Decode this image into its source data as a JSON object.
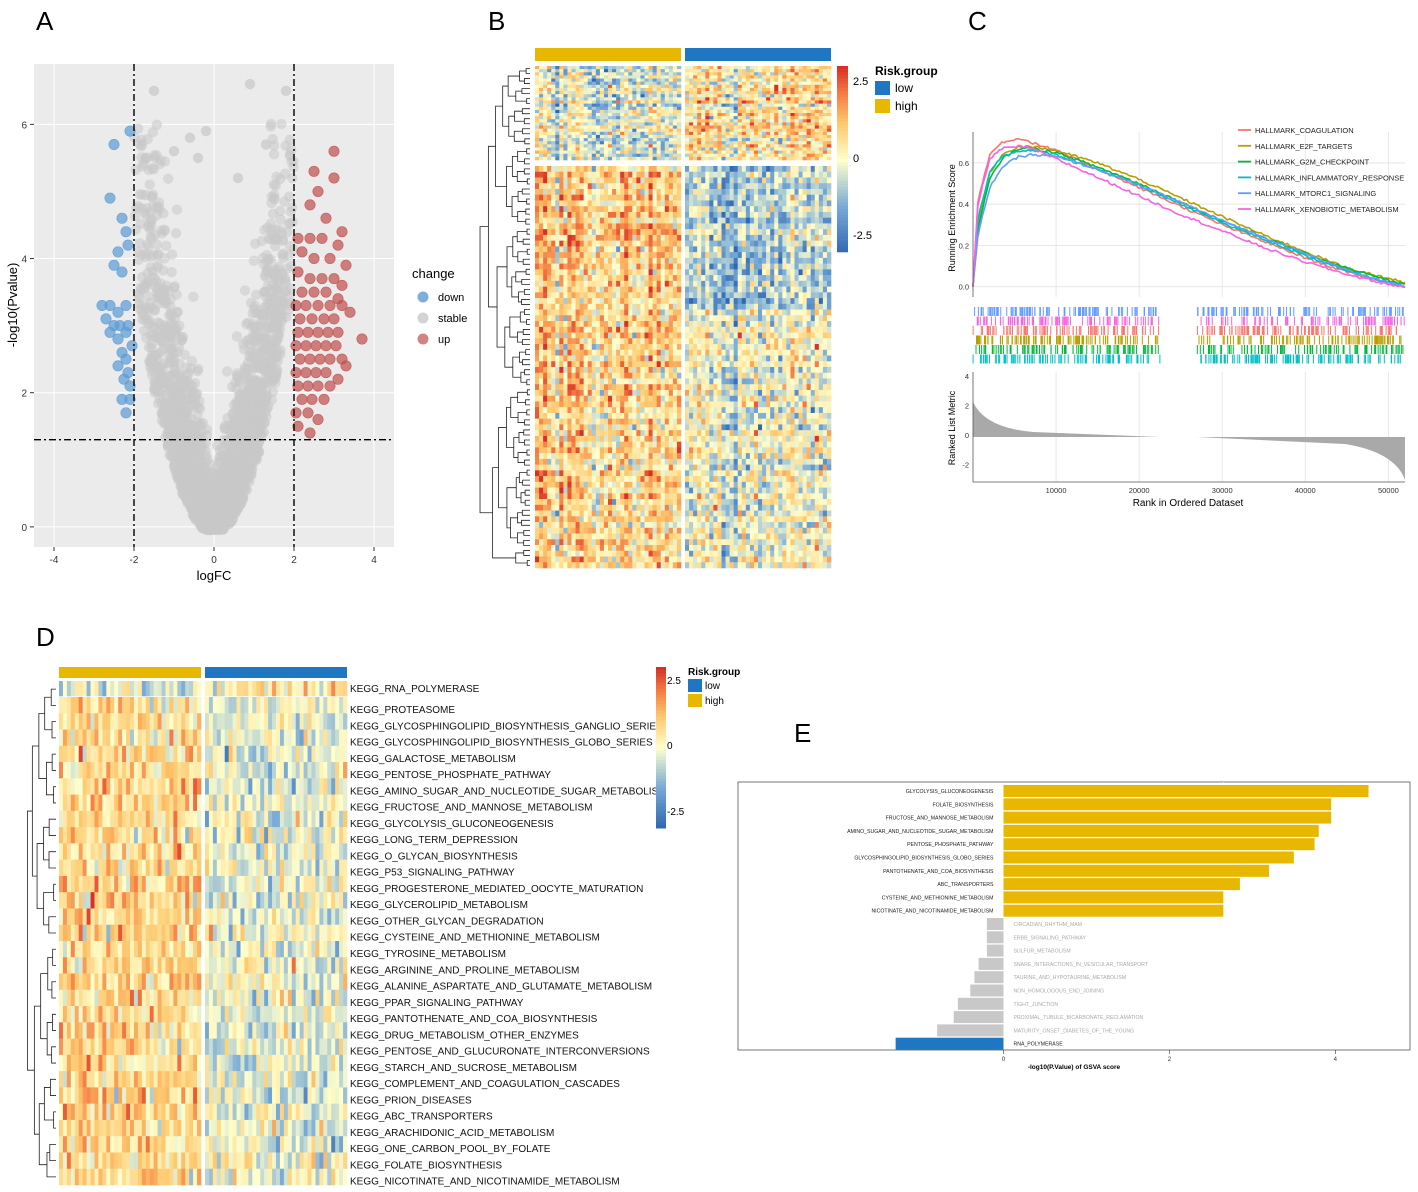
{
  "panel_labels": {
    "A": "A",
    "B": "B",
    "C": "C",
    "D": "D",
    "E": "E"
  },
  "colors": {
    "down": "#5B9BD5",
    "stable": "#C8C8C8",
    "up": "#C0504D",
    "risk_low": "#1F77C4",
    "risk_high": "#E8B800",
    "gsva_pos": "#E8B800",
    "gsva_neg": "#1F77C4",
    "gsva_ns": "#C8C8C8",
    "gsea": [
      "#F8766D",
      "#B79F00",
      "#00BA38",
      "#00BFC4",
      "#619CFF",
      "#F564E3"
    ]
  },
  "chart_data": [
    {
      "panel": "A",
      "type": "scatter",
      "xlabel": "logFC",
      "ylabel": "-log10(Pvalue)",
      "xlim": [
        -4.5,
        4.5
      ],
      "ylim": [
        -0.3,
        6.9
      ],
      "xticks": [
        -4,
        -2,
        0,
        2,
        4
      ],
      "yticks": [
        0,
        2,
        4,
        6
      ],
      "grid": true,
      "thresholds": {
        "logFC": [
          -2,
          2
        ],
        "neglog10p": 1.3
      },
      "legend": {
        "title": "change",
        "entries": [
          "down",
          "stable",
          "up"
        ],
        "placement": "right"
      },
      "series": [
        {
          "name": "down",
          "points": [
            [
              -2.5,
              5.7
            ],
            [
              -2.1,
              5.9
            ],
            [
              -2.6,
              4.9
            ],
            [
              -2.3,
              4.6
            ],
            [
              -2.2,
              4.4
            ],
            [
              -2.15,
              4.2
            ],
            [
              -2.4,
              4.1
            ],
            [
              -2.5,
              3.9
            ],
            [
              -2.3,
              3.8
            ],
            [
              -2.8,
              3.3
            ],
            [
              -2.6,
              3.3
            ],
            [
              -2.4,
              3.2
            ],
            [
              -2.2,
              3.3
            ],
            [
              -2.7,
              3.1
            ],
            [
              -2.5,
              3.0
            ],
            [
              -2.35,
              3.0
            ],
            [
              -2.15,
              3.0
            ],
            [
              -2.6,
              2.9
            ],
            [
              -2.4,
              2.8
            ],
            [
              -2.2,
              2.9
            ],
            [
              -2.3,
              2.6
            ],
            [
              -2.2,
              2.5
            ],
            [
              -2.4,
              2.4
            ],
            [
              -2.15,
              2.3
            ],
            [
              -2.25,
              2.2
            ],
            [
              -2.1,
              2.1
            ],
            [
              -2.3,
              1.9
            ],
            [
              -2.2,
              1.7
            ],
            [
              -2.1,
              1.9
            ],
            [
              -2.05,
              2.7
            ]
          ]
        },
        {
          "name": "up",
          "points": [
            [
              3.0,
              5.6
            ],
            [
              3.0,
              5.2
            ],
            [
              2.6,
              5.0
            ],
            [
              2.4,
              4.8
            ],
            [
              2.8,
              4.6
            ],
            [
              3.2,
              4.4
            ],
            [
              2.1,
              4.3
            ],
            [
              2.4,
              4.3
            ],
            [
              2.7,
              4.3
            ],
            [
              3.1,
              4.2
            ],
            [
              2.2,
              4.1
            ],
            [
              2.5,
              4.0
            ],
            [
              2.9,
              4.0
            ],
            [
              3.3,
              3.9
            ],
            [
              2.1,
              3.8
            ],
            [
              2.4,
              3.7
            ],
            [
              2.7,
              3.7
            ],
            [
              3.0,
              3.7
            ],
            [
              3.2,
              3.6
            ],
            [
              2.2,
              3.5
            ],
            [
              2.5,
              3.5
            ],
            [
              2.8,
              3.5
            ],
            [
              3.1,
              3.4
            ],
            [
              2.05,
              3.3
            ],
            [
              2.3,
              3.3
            ],
            [
              2.6,
              3.3
            ],
            [
              2.9,
              3.3
            ],
            [
              3.2,
              3.3
            ],
            [
              2.15,
              3.1
            ],
            [
              2.45,
              3.1
            ],
            [
              2.75,
              3.1
            ],
            [
              3.0,
              3.1
            ],
            [
              2.1,
              2.9
            ],
            [
              2.35,
              2.9
            ],
            [
              2.6,
              2.9
            ],
            [
              2.85,
              2.9
            ],
            [
              3.1,
              2.9
            ],
            [
              2.05,
              2.7
            ],
            [
              2.3,
              2.7
            ],
            [
              2.55,
              2.7
            ],
            [
              2.8,
              2.7
            ],
            [
              3.05,
              2.7
            ],
            [
              2.15,
              2.5
            ],
            [
              2.4,
              2.5
            ],
            [
              2.65,
              2.5
            ],
            [
              2.9,
              2.5
            ],
            [
              3.2,
              2.5
            ],
            [
              2.05,
              2.3
            ],
            [
              2.3,
              2.3
            ],
            [
              2.55,
              2.3
            ],
            [
              2.8,
              2.3
            ],
            [
              3.1,
              2.2
            ],
            [
              2.1,
              2.1
            ],
            [
              2.35,
              2.1
            ],
            [
              2.6,
              2.1
            ],
            [
              2.9,
              2.1
            ],
            [
              2.2,
              1.9
            ],
            [
              2.45,
              1.9
            ],
            [
              2.75,
              1.9
            ],
            [
              2.05,
              1.7
            ],
            [
              2.35,
              1.7
            ],
            [
              2.6,
              1.6
            ],
            [
              2.1,
              1.5
            ],
            [
              2.4,
              1.4
            ],
            [
              3.7,
              2.8
            ],
            [
              3.3,
              2.4
            ],
            [
              3.4,
              3.2
            ],
            [
              2.5,
              5.3
            ]
          ]
        }
      ]
    },
    {
      "panel": "B",
      "type": "heatmap",
      "legend": {
        "title": "Risk.group",
        "entries": [
          "low",
          "high"
        ],
        "placement": "right"
      },
      "colorbar": {
        "ticks": [
          "2.5",
          "0",
          "-2.5"
        ],
        "range": [
          -3,
          3
        ]
      },
      "groups": [
        "high",
        "low"
      ],
      "n_samples_per_group": [
        36,
        36
      ],
      "n_genes": 100
    },
    {
      "panel": "C",
      "type": "line",
      "xlabel": "Rank in Ordered Dataset",
      "ylabel": "Running Enrichment Score",
      "ylabel_bottom": "Ranked List Metric",
      "xlim": [
        0,
        52000
      ],
      "ylim": [
        -0.05,
        0.75
      ],
      "xticks": [
        10000,
        20000,
        30000,
        40000,
        50000
      ],
      "yticks": [
        "0.0",
        "0.2",
        "0.4",
        "0.6"
      ],
      "metric_ticks": [
        "4",
        "2",
        "0",
        "-2"
      ],
      "legend_placement": "top-right",
      "series": [
        {
          "name": "HALLMARK_COAGULATION",
          "x": [
            0,
            600,
            2000,
            3500,
            5500,
            7000,
            10000,
            15000,
            20000,
            25000,
            30000,
            35000,
            40000,
            45000,
            50000,
            52000
          ],
          "y": [
            0,
            0.42,
            0.64,
            0.7,
            0.72,
            0.7,
            0.66,
            0.57,
            0.48,
            0.39,
            0.3,
            0.22,
            0.14,
            0.07,
            0.02,
            0
          ]
        },
        {
          "name": "HALLMARK_E2F_TARGETS",
          "x": [
            0,
            600,
            2000,
            3500,
            5500,
            7000,
            10000,
            15000,
            20000,
            25000,
            30000,
            35000,
            40000,
            45000,
            50000,
            52000
          ],
          "y": [
            0,
            0.3,
            0.55,
            0.64,
            0.68,
            0.68,
            0.66,
            0.6,
            0.52,
            0.43,
            0.34,
            0.25,
            0.17,
            0.09,
            0.04,
            0.02
          ]
        },
        {
          "name": "HALLMARK_G2M_CHECKPOINT",
          "x": [
            0,
            600,
            2000,
            3500,
            5500,
            7000,
            10000,
            15000,
            20000,
            25000,
            30000,
            35000,
            40000,
            45000,
            50000,
            52000
          ],
          "y": [
            0,
            0.28,
            0.52,
            0.62,
            0.67,
            0.67,
            0.65,
            0.58,
            0.5,
            0.41,
            0.32,
            0.24,
            0.16,
            0.09,
            0.03,
            0.01
          ]
        },
        {
          "name": "HALLMARK_INFLAMMATORY_RESPONSE",
          "x": [
            0,
            600,
            2000,
            3500,
            5500,
            7000,
            10000,
            15000,
            20000,
            25000,
            30000,
            35000,
            40000,
            45000,
            50000,
            52000
          ],
          "y": [
            0,
            0.33,
            0.56,
            0.63,
            0.66,
            0.66,
            0.64,
            0.57,
            0.49,
            0.4,
            0.31,
            0.23,
            0.15,
            0.08,
            0.02,
            0
          ]
        },
        {
          "name": "HALLMARK_MTORC1_SIGNALING",
          "x": [
            0,
            600,
            2000,
            3500,
            5500,
            7000,
            10000,
            15000,
            20000,
            25000,
            30000,
            35000,
            40000,
            45000,
            50000,
            52000
          ],
          "y": [
            0,
            0.25,
            0.48,
            0.58,
            0.63,
            0.64,
            0.63,
            0.57,
            0.49,
            0.41,
            0.32,
            0.24,
            0.16,
            0.08,
            0.02,
            0
          ]
        },
        {
          "name": "HALLMARK_XENOBIOTIC_METABOLISM",
          "x": [
            0,
            600,
            2000,
            3500,
            5500,
            7000,
            10000,
            15000,
            20000,
            25000,
            30000,
            35000,
            40000,
            45000,
            50000,
            52000
          ],
          "y": [
            0,
            0.4,
            0.62,
            0.67,
            0.68,
            0.67,
            0.62,
            0.53,
            0.44,
            0.35,
            0.27,
            0.19,
            0.12,
            0.06,
            0.01,
            0
          ]
        }
      ]
    },
    {
      "panel": "D",
      "type": "heatmap",
      "legend": {
        "title": "Risk.group",
        "entries": [
          "low",
          "high"
        ],
        "placement": "right"
      },
      "colorbar": {
        "ticks": [
          "2.5",
          "0",
          "-2.5"
        ],
        "range": [
          -3,
          3
        ]
      },
      "groups": [
        "high",
        "low"
      ],
      "n_samples_per_group": [
        36,
        36
      ],
      "rows": [
        "KEGG_RNA_POLYMERASE",
        "KEGG_PROTEASOME",
        "KEGG_GLYCOSPHINGOLIPID_BIOSYNTHESIS_GANGLIO_SERIES",
        "KEGG_GLYCOSPHINGOLIPID_BIOSYNTHESIS_GLOBO_SERIES",
        "KEGG_GALACTOSE_METABOLISM",
        "KEGG_PENTOSE_PHOSPHATE_PATHWAY",
        "KEGG_AMINO_SUGAR_AND_NUCLEOTIDE_SUGAR_METABOLISM",
        "KEGG_FRUCTOSE_AND_MANNOSE_METABOLISM",
        "KEGG_GLYCOLYSIS_GLUCONEOGENESIS",
        "KEGG_LONG_TERM_DEPRESSION",
        "KEGG_O_GLYCAN_BIOSYNTHESIS",
        "KEGG_P53_SIGNALING_PATHWAY",
        "KEGG_PROGESTERONE_MEDIATED_OOCYTE_MATURATION",
        "KEGG_GLYCEROLIPID_METABOLISM",
        "KEGG_OTHER_GLYCAN_DEGRADATION",
        "KEGG_CYSTEINE_AND_METHIONINE_METABOLISM",
        "KEGG_TYROSINE_METABOLISM",
        "KEGG_ARGININE_AND_PROLINE_METABOLISM",
        "KEGG_ALANINE_ASPARTATE_AND_GLUTAMATE_METABOLISM",
        "KEGG_PPAR_SIGNALING_PATHWAY",
        "KEGG_PANTOTHENATE_AND_COA_BIOSYNTHESIS",
        "KEGG_DRUG_METABOLISM_OTHER_ENZYMES",
        "KEGG_PENTOSE_AND_GLUCURONATE_INTERCONVERSIONS",
        "KEGG_STARCH_AND_SUCROSE_METABOLISM",
        "KEGG_COMPLEMENT_AND_COAGULATION_CASCADES",
        "KEGG_PRION_DISEASES",
        "KEGG_ABC_TRANSPORTERS",
        "KEGG_ARACHIDONIC_ACID_METABOLISM",
        "KEGG_ONE_CARBON_POOL_BY_FOLATE",
        "KEGG_FOLATE_BIOSYNTHESIS",
        "KEGG_NICOTINATE_AND_NICOTINAMIDE_METABOLISM"
      ]
    },
    {
      "panel": "E",
      "type": "bar",
      "orientation": "horizontal",
      "xlabel": "-log10(P.Value) of GSVA score",
      "xlim": [
        -3.2,
        4.9
      ],
      "xticks": [
        0,
        2,
        4
      ],
      "categories": [
        "GLYCOLYSIS_GLUCONEOGENESIS",
        "FOLATE_BIOSYNTHESIS",
        "FRUCTOSE_AND_MANNOSE_METABOLISM",
        "AMINO_SUGAR_AND_NUCLEOTIDE_SUGAR_METABOLISM",
        "PENTOSE_PHOSPHATE_PATHWAY",
        "GLYCOSPHINGOLIPID_BIOSYNTHESIS_GLOBO_SERIES",
        "PANTOTHENATE_AND_COA_BIOSYNTHESIS",
        "ABC_TRANSPORTERS",
        "CYSTEINE_AND_METHIONINE_METABOLISM",
        "NICOTINATE_AND_NICOTINAMIDE_METABOLISM",
        "CIRCADIAN_RHYTHM_MAMMAL",
        "ERBB_SIGNALING_PATHWAY",
        "SULFUR_METABOLISM",
        "SNARE_INTERACTIONS_IN_VESICULAR_TRANSPORT",
        "TAURINE_AND_HYPOTAURINE_METABOLISM",
        "NON_HOMOLOGOUS_END_JOINING",
        "TIGHT_JUNCTION",
        "PROXIMAL_TUBULE_BICARBONATE_RECLAMATION",
        "MATURITY_ONSET_DIABETES_OF_THE_YOUNG",
        "RNA_POLYMERASE"
      ],
      "tick_labels": [
        "GLYCOLYSIS_GLUCONEOGENESIS",
        "FOLATE_BIOSYNTHESIS",
        "FRUCTOSE_AND_MANNOSE_METABOLISM",
        "AMINO_SUGAR_AND_NUCLEOTIDE_SUGAR_METABOLISM",
        "PENTOSE_PHOSPHATE_PATHWAY",
        "GLYCOSPHINGOLIPID_BIOSYNTHESIS_GLOBO_SERIES",
        "PANTOTHENATE_AND_COA_BIOSYNTHESIS",
        "ABC_TRANSPORTERS",
        "CYSTEINE_AND_METHIONINE_METABOLISM",
        "NICOTINATE_AND_NICOTINAMIDE_METABOLISM",
        "CIRCADIAN_RHYTHM_MAM",
        "ERBB_SIGNALING_PATHWAY",
        "SULFUR_METABOLISM",
        "SNARE_INTERACTIONS_IN_VESICULAR_TRANSPORT",
        "TAURINE_AND_HYPOTAURINE_METABOLISM",
        "NON_HOMOLOGOUS_END_JOINING",
        "TIGHT_JUNCTION",
        "PROXIMAL_TUBULE_BICARBONATE_RECLAMATION",
        "MATURITY_ONSET_DIABETES_OF_THE_YOUNG",
        "RNA_POLYMERASE"
      ],
      "values": [
        4.4,
        3.95,
        3.95,
        3.8,
        3.75,
        3.5,
        3.2,
        2.85,
        2.65,
        2.65,
        -0.2,
        -0.2,
        -0.2,
        -0.3,
        -0.35,
        -0.4,
        -0.55,
        -0.6,
        -0.8,
        -1.3
      ],
      "groups": [
        "pos",
        "pos",
        "pos",
        "pos",
        "pos",
        "pos",
        "pos",
        "pos",
        "pos",
        "pos",
        "ns",
        "ns",
        "ns",
        "ns",
        "ns",
        "ns",
        "ns",
        "ns",
        "ns",
        "neg"
      ]
    }
  ]
}
